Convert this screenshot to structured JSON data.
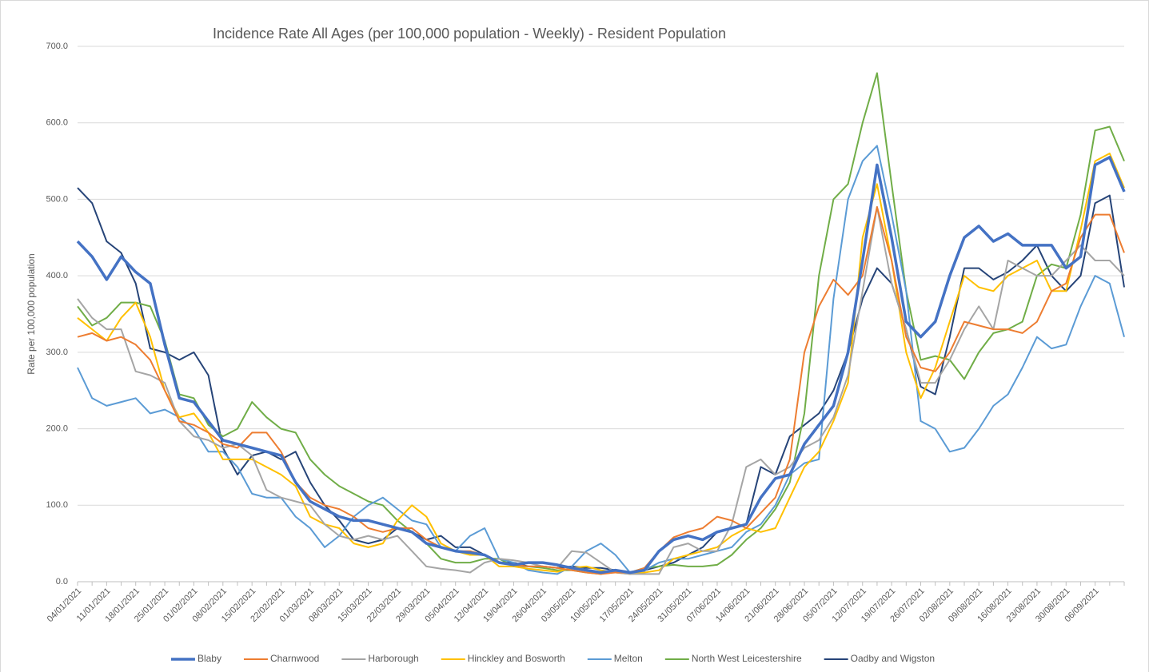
{
  "chart_data": {
    "type": "line",
    "title": "Incidence Rate All Ages (per 100,000 population - Weekly) - Resident Population",
    "y_label": "Rate per 100,000 population",
    "categories": [
      "04/01/2021",
      null,
      "11/01/2021",
      null,
      "18/01/2021",
      null,
      "25/01/2021",
      null,
      "01/02/2021",
      null,
      "08/02/2021",
      null,
      "15/02/2021",
      null,
      "22/02/2021",
      null,
      "01/03/2021",
      null,
      "08/03/2021",
      null,
      "15/03/2021",
      null,
      "22/03/2021",
      null,
      "29/03/2021",
      null,
      "05/04/2021",
      null,
      "12/04/2021",
      null,
      "19/04/2021",
      null,
      "26/04/2021",
      null,
      "03/05/2021",
      null,
      "10/05/2021",
      null,
      "17/05/2021",
      null,
      "24/05/2021",
      null,
      "31/05/2021",
      null,
      "07/06/2021",
      null,
      "14/06/2021",
      null,
      "21/06/2021",
      null,
      "28/06/2021",
      null,
      "05/07/2021",
      null,
      "12/07/2021",
      null,
      "19/07/2021",
      null,
      "26/07/2021",
      null,
      "02/08/2021",
      null,
      "09/08/2021",
      null,
      "16/08/2021",
      null,
      "23/08/2021",
      null,
      "30/08/2021",
      null,
      "06/09/2021",
      null,
      null
    ],
    "series": [
      {
        "name": "Blaby",
        "color": "#4472c4",
        "values": [
          445,
          425,
          395,
          425,
          405,
          390,
          310,
          240,
          235,
          210,
          185,
          180,
          175,
          170,
          165,
          130,
          105,
          95,
          85,
          80,
          80,
          75,
          70,
          65,
          50,
          45,
          40,
          38,
          35,
          25,
          22,
          25,
          25,
          22,
          18,
          15,
          12,
          15,
          12,
          15,
          40,
          55,
          60,
          55,
          65,
          70,
          75,
          110,
          135,
          140,
          180,
          205,
          230,
          300,
          420,
          545,
          450,
          340,
          320,
          340,
          400,
          450,
          465,
          445,
          455,
          440,
          440,
          440,
          410,
          425,
          545,
          555,
          510
        ]
      },
      {
        "name": "Charnwood",
        "color": "#ed7d31",
        "values": [
          320,
          325,
          315,
          320,
          310,
          290,
          250,
          210,
          205,
          195,
          180,
          175,
          195,
          195,
          170,
          130,
          110,
          100,
          95,
          85,
          70,
          65,
          70,
          70,
          55,
          45,
          40,
          40,
          35,
          25,
          22,
          20,
          20,
          18,
          15,
          12,
          10,
          12,
          12,
          18,
          40,
          58,
          65,
          70,
          85,
          80,
          70,
          90,
          110,
          160,
          300,
          360,
          395,
          375,
          400,
          490,
          420,
          320,
          280,
          275,
          300,
          340,
          335,
          330,
          330,
          325,
          340,
          380,
          390,
          450,
          480,
          480,
          430
        ]
      },
      {
        "name": "Harborough",
        "color": "#a5a5a5",
        "values": [
          370,
          345,
          330,
          330,
          275,
          270,
          260,
          210,
          190,
          185,
          175,
          180,
          165,
          120,
          110,
          105,
          100,
          75,
          60,
          55,
          60,
          55,
          60,
          40,
          20,
          17,
          15,
          12,
          25,
          30,
          28,
          25,
          20,
          18,
          40,
          38,
          25,
          12,
          10,
          10,
          10,
          45,
          50,
          40,
          40,
          75,
          150,
          160,
          140,
          150,
          175,
          185,
          215,
          270,
          380,
          490,
          390,
          330,
          260,
          260,
          290,
          330,
          360,
          330,
          420,
          410,
          400,
          400,
          420,
          440,
          420,
          420,
          400
        ]
      },
      {
        "name": "Hinckley and Bosworth",
        "color": "#ffc000",
        "values": [
          345,
          330,
          315,
          345,
          365,
          320,
          250,
          215,
          220,
          195,
          160,
          160,
          160,
          150,
          140,
          125,
          85,
          75,
          70,
          50,
          45,
          50,
          80,
          100,
          85,
          50,
          40,
          35,
          35,
          20,
          20,
          17,
          15,
          13,
          18,
          20,
          15,
          12,
          10,
          12,
          15,
          30,
          35,
          40,
          45,
          60,
          70,
          65,
          70,
          110,
          150,
          170,
          210,
          260,
          450,
          520,
          420,
          300,
          240,
          280,
          340,
          400,
          385,
          380,
          400,
          410,
          420,
          380,
          380,
          460,
          550,
          560,
          515
        ]
      },
      {
        "name": "Melton",
        "color": "#5b9bd5",
        "values": [
          280,
          240,
          230,
          235,
          240,
          220,
          225,
          215,
          200,
          170,
          170,
          150,
          115,
          110,
          110,
          85,
          70,
          45,
          60,
          85,
          100,
          110,
          95,
          80,
          75,
          45,
          40,
          60,
          70,
          30,
          25,
          15,
          12,
          10,
          20,
          40,
          50,
          35,
          12,
          15,
          25,
          30,
          30,
          35,
          40,
          45,
          65,
          75,
          100,
          140,
          155,
          160,
          370,
          500,
          550,
          570,
          480,
          380,
          210,
          200,
          170,
          175,
          200,
          230,
          245,
          280,
          320,
          305,
          310,
          360,
          400,
          390,
          320
        ]
      },
      {
        "name": "North West Leicestershire",
        "color": "#70ad47",
        "values": [
          360,
          335,
          345,
          365,
          365,
          360,
          315,
          245,
          240,
          205,
          190,
          200,
          235,
          215,
          200,
          195,
          160,
          140,
          125,
          115,
          105,
          100,
          80,
          65,
          50,
          30,
          25,
          25,
          30,
          30,
          20,
          20,
          18,
          15,
          15,
          12,
          10,
          15,
          12,
          18,
          20,
          22,
          20,
          20,
          22,
          35,
          55,
          70,
          95,
          130,
          220,
          400,
          500,
          520,
          600,
          665,
          520,
          380,
          290,
          295,
          290,
          265,
          300,
          325,
          330,
          340,
          400,
          415,
          410,
          480,
          590,
          595,
          550
        ]
      },
      {
        "name": "Oadby and Wigston",
        "color": "#264478",
        "values": [
          515,
          495,
          445,
          430,
          390,
          305,
          300,
          290,
          300,
          270,
          175,
          140,
          165,
          170,
          160,
          170,
          130,
          100,
          80,
          55,
          50,
          55,
          70,
          65,
          55,
          60,
          45,
          45,
          35,
          25,
          25,
          20,
          20,
          18,
          20,
          18,
          18,
          15,
          12,
          15,
          20,
          25,
          35,
          45,
          65,
          70,
          75,
          150,
          140,
          190,
          205,
          220,
          250,
          300,
          370,
          410,
          390,
          330,
          255,
          245,
          320,
          410,
          410,
          395,
          405,
          420,
          440,
          400,
          380,
          400,
          495,
          505,
          385
        ]
      }
    ],
    "ylim": [
      0,
      700
    ],
    "yticks": [
      {
        "value": 0,
        "label": "0.0"
      },
      {
        "value": 100,
        "label": "100.0"
      },
      {
        "value": 200,
        "label": "200.0"
      },
      {
        "value": 300,
        "label": "300.0"
      },
      {
        "value": 400,
        "label": "400.0"
      },
      {
        "value": 500,
        "label": "500.0"
      },
      {
        "value": 600,
        "label": "600.0"
      },
      {
        "value": 700,
        "label": "700.0"
      }
    ],
    "grid": true,
    "legend": "bottom"
  }
}
